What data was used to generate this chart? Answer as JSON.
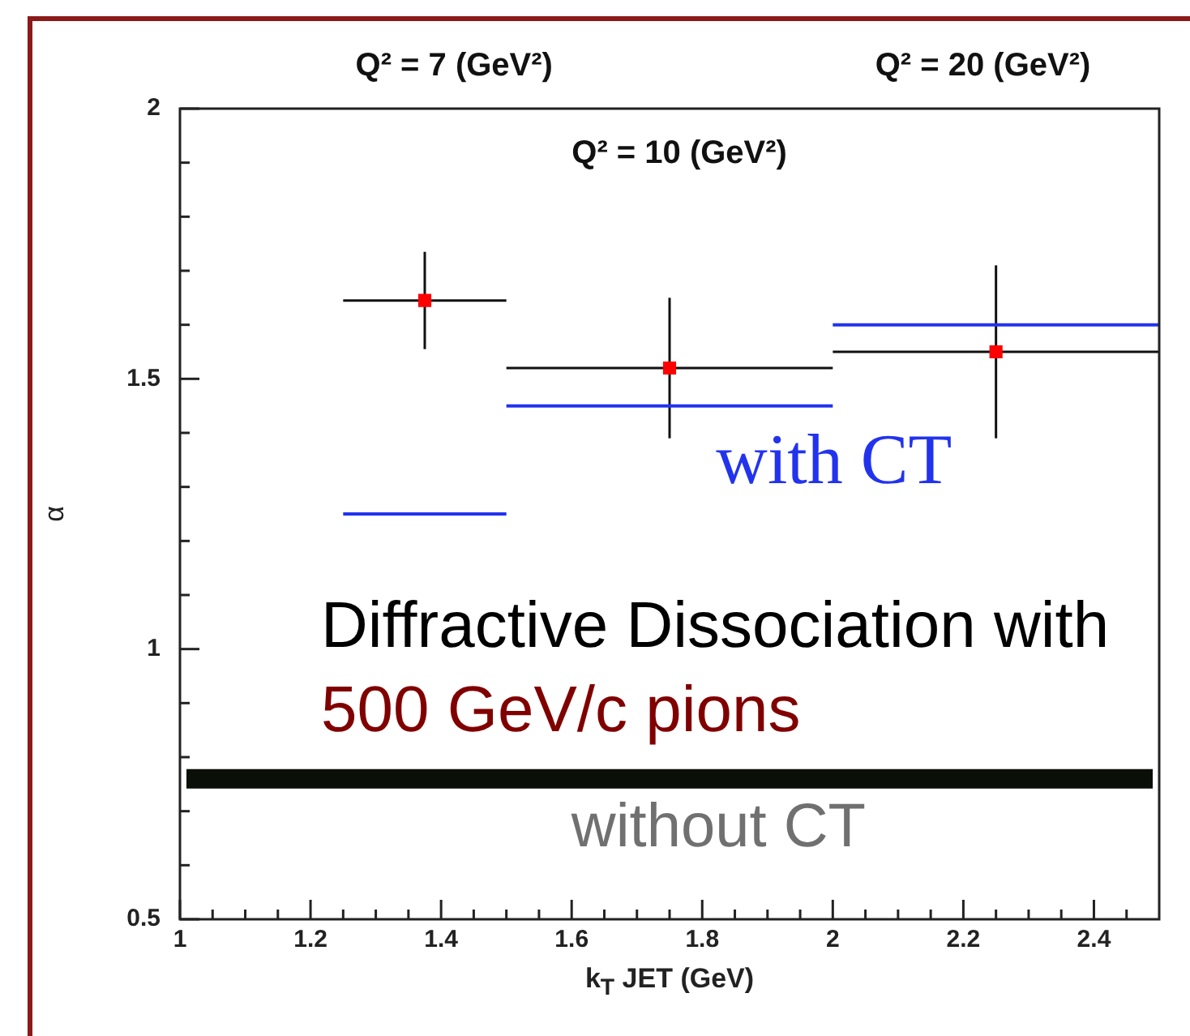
{
  "chart_data": {
    "type": "scatter",
    "xlabel": "k$_{T}$ JET (GeV)",
    "ylabel": "α",
    "xlim": [
      1,
      2.5
    ],
    "ylim": [
      0.5,
      2
    ],
    "xticks": [
      1,
      {
        "value": 1.05,
        "label": null
      },
      {
        "value": 1.1,
        "label": null
      },
      {
        "value": 1.15,
        "label": null
      },
      1.2,
      {
        "value": 1.25,
        "label": null
      },
      {
        "value": 1.3,
        "label": null
      },
      {
        "value": 1.35,
        "label": null
      },
      1.4,
      {
        "value": 1.45,
        "label": null
      },
      {
        "value": 1.5,
        "label": null
      },
      {
        "value": 1.55,
        "label": null
      },
      1.6,
      {
        "value": 1.65,
        "label": null
      },
      {
        "value": 1.7,
        "label": null
      },
      {
        "value": 1.75,
        "label": null
      },
      1.8,
      {
        "value": 1.85,
        "label": null
      },
      {
        "value": 1.9,
        "label": null
      },
      {
        "value": 1.95,
        "label": null
      },
      2,
      {
        "value": 2.05,
        "label": null
      },
      {
        "value": 2.1,
        "label": null
      },
      {
        "value": 2.15,
        "label": null
      },
      2.2,
      {
        "value": 2.25,
        "label": null
      },
      {
        "value": 2.3,
        "label": null
      },
      {
        "value": 2.35,
        "label": null
      },
      2.4,
      {
        "value": 2.45,
        "label": null
      }
    ],
    "yticks": [
      0.5,
      {
        "value": 0.6,
        "label": null
      },
      {
        "value": 0.7,
        "label": null
      },
      {
        "value": 0.8,
        "label": null
      },
      {
        "value": 0.9,
        "label": null
      },
      1,
      {
        "value": 1.1,
        "label": null
      },
      {
        "value": 1.2,
        "label": null
      },
      {
        "value": 1.3,
        "label": null
      },
      {
        "value": 1.4,
        "label": null
      },
      1.5,
      {
        "value": 1.6,
        "label": null
      },
      {
        "value": 1.7,
        "label": null
      },
      {
        "value": 1.8,
        "label": null
      },
      {
        "value": 1.9,
        "label": null
      },
      2
    ],
    "grid": false,
    "legend": false,
    "series": [
      {
        "marker": "square",
        "color": "#ff0000",
        "x": [
          1.375,
          1.75,
          2.25
        ],
        "values": [
          1.645,
          1.52,
          1.55
        ],
        "xerrors": [
          0.125,
          0.25,
          0.25
        ],
        "errors": [
          0.09,
          0.13,
          0.16
        ]
      },
      {
        "type": "line",
        "marker": "none",
        "color": "#2233ee",
        "x": [
          1.25,
          1.5
        ],
        "values": [
          1.25,
          1.25
        ]
      },
      {
        "type": "line",
        "marker": "none",
        "name": "with CT",
        "color": "#2233ee",
        "x": [
          1.5,
          2
        ],
        "values": [
          1.45,
          1.45
        ]
      },
      {
        "type": "line",
        "marker": "none",
        "color": "#2233ee",
        "x": [
          2,
          2.5
        ],
        "values": [
          1.6,
          1.6
        ]
      }
    ],
    "ref_lines": [
      {
        "axis": "y",
        "value": 0.76,
        "label": "without CT",
        "color": "#0a0f08"
      }
    ],
    "annotations": [
      "Q² = 7 (GeV²)",
      "Q² = 10 (GeV²)",
      "Q² = 20 (GeV²)",
      "Diffractive Dissociation with",
      "500 GeV/c pions"
    ]
  }
}
